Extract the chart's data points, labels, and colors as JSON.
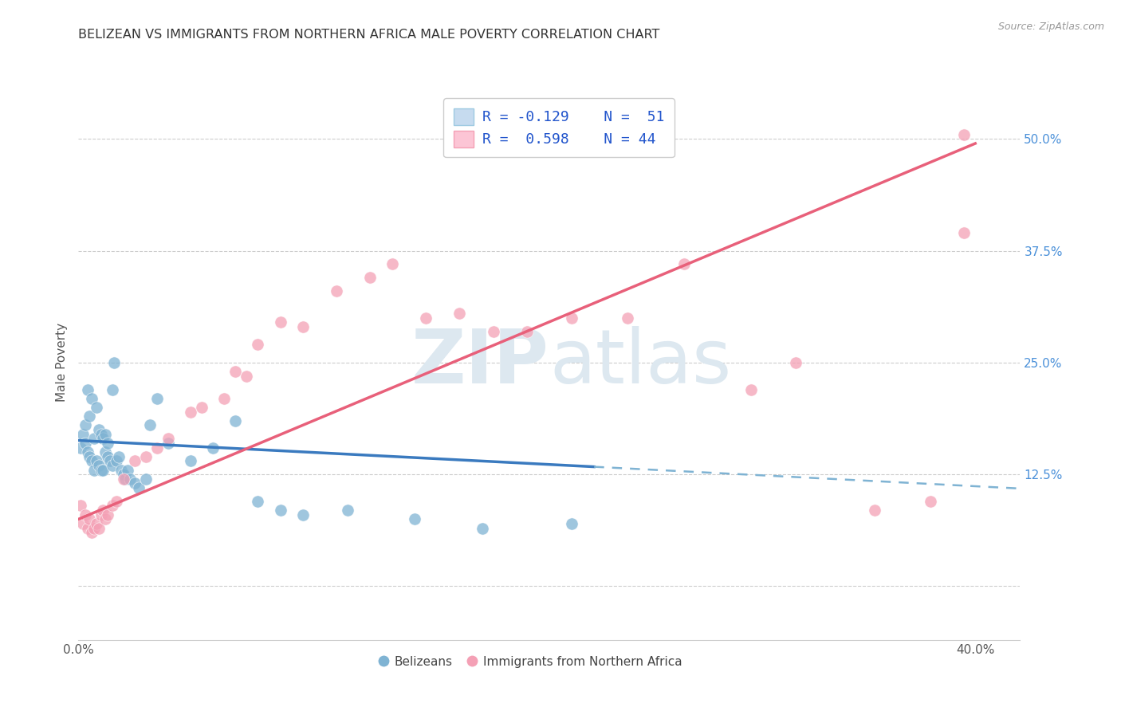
{
  "title": "BELIZEAN VS IMMIGRANTS FROM NORTHERN AFRICA MALE POVERTY CORRELATION CHART",
  "source": "Source: ZipAtlas.com",
  "ylabel": "Male Poverty",
  "xlim": [
    0.0,
    0.42
  ],
  "ylim": [
    -0.06,
    0.56
  ],
  "ytick_vals": [
    0.0,
    0.125,
    0.25,
    0.375,
    0.5
  ],
  "ytick_labels": [
    "",
    "12.5%",
    "25.0%",
    "37.5%",
    "50.0%"
  ],
  "xtick_vals": [
    0.0,
    0.4
  ],
  "xtick_labels": [
    "0.0%",
    "40.0%"
  ],
  "blue_scatter_color": "#7fb3d3",
  "pink_scatter_color": "#f4a0b5",
  "line_blue_solid": "#3a7abf",
  "line_blue_dashed": "#7fb3d3",
  "line_pink": "#e8607a",
  "ytick_color": "#4a90d9",
  "legend_label_color": "#2255cc",
  "title_color": "#333333",
  "source_color": "#999999",
  "watermark_color": "#dde8f0",
  "grid_color": "#cccccc",
  "blue_patch_face": "#c6dbef",
  "blue_patch_edge": "#9ecae1",
  "pink_patch_face": "#fcc5d5",
  "pink_patch_edge": "#f4a0b5",
  "blue_line_solid_end": 0.23,
  "blue_line_dashed_start": 0.23,
  "blue_line_dashed_end": 0.42,
  "blue_intercept": 0.163,
  "blue_slope": -0.128,
  "pink_intercept": 0.075,
  "pink_slope": 1.05,
  "legend_x_label": "Belizeans",
  "legend_y_label": "Immigrants from Northern Africa",
  "blue_dots_x": [
    0.001,
    0.002,
    0.003,
    0.003,
    0.004,
    0.004,
    0.005,
    0.005,
    0.006,
    0.006,
    0.007,
    0.007,
    0.008,
    0.008,
    0.009,
    0.009,
    0.01,
    0.01,
    0.011,
    0.011,
    0.012,
    0.012,
    0.013,
    0.013,
    0.014,
    0.015,
    0.015,
    0.016,
    0.017,
    0.018,
    0.019,
    0.02,
    0.021,
    0.022,
    0.023,
    0.025,
    0.027,
    0.03,
    0.032,
    0.035,
    0.04,
    0.05,
    0.06,
    0.07,
    0.08,
    0.09,
    0.1,
    0.12,
    0.15,
    0.18,
    0.22
  ],
  "blue_dots_y": [
    0.155,
    0.17,
    0.16,
    0.18,
    0.15,
    0.22,
    0.145,
    0.19,
    0.14,
    0.21,
    0.13,
    0.165,
    0.14,
    0.2,
    0.135,
    0.175,
    0.13,
    0.17,
    0.13,
    0.165,
    0.15,
    0.17,
    0.145,
    0.16,
    0.14,
    0.135,
    0.22,
    0.25,
    0.14,
    0.145,
    0.13,
    0.125,
    0.12,
    0.13,
    0.12,
    0.115,
    0.11,
    0.12,
    0.18,
    0.21,
    0.16,
    0.14,
    0.155,
    0.185,
    0.095,
    0.085,
    0.08,
    0.085,
    0.075,
    0.065,
    0.07
  ],
  "pink_dots_x": [
    0.001,
    0.002,
    0.003,
    0.004,
    0.005,
    0.006,
    0.007,
    0.008,
    0.009,
    0.01,
    0.011,
    0.012,
    0.013,
    0.015,
    0.017,
    0.02,
    0.025,
    0.03,
    0.035,
    0.04,
    0.05,
    0.055,
    0.065,
    0.07,
    0.075,
    0.08,
    0.09,
    0.1,
    0.115,
    0.13,
    0.14,
    0.155,
    0.17,
    0.185,
    0.2,
    0.22,
    0.245,
    0.27,
    0.3,
    0.32,
    0.355,
    0.38,
    0.395,
    0.395
  ],
  "pink_dots_y": [
    0.09,
    0.07,
    0.08,
    0.065,
    0.075,
    0.06,
    0.065,
    0.07,
    0.065,
    0.08,
    0.085,
    0.075,
    0.08,
    0.09,
    0.095,
    0.12,
    0.14,
    0.145,
    0.155,
    0.165,
    0.195,
    0.2,
    0.21,
    0.24,
    0.235,
    0.27,
    0.295,
    0.29,
    0.33,
    0.345,
    0.36,
    0.3,
    0.305,
    0.285,
    0.285,
    0.3,
    0.3,
    0.36,
    0.22,
    0.25,
    0.085,
    0.095,
    0.505,
    0.395
  ]
}
